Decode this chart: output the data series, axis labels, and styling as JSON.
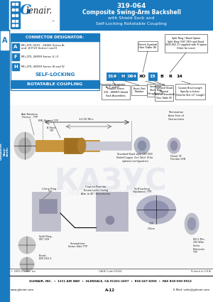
{
  "title_part": "319-064",
  "title_line1": "Composite Swing-Arm Backshell",
  "title_line2": "with Shield Sock and",
  "title_line3": "Self-Locking Rotatable Coupling",
  "header_bg": "#1a7abf",
  "header_text_color": "#ffffff",
  "sidebar_bg": "#1a7abf",
  "connector_designator_title": "CONNECTOR DESIGNATOR:",
  "connector_rows": [
    [
      "A",
      "MIL-DTL-5015, -26482 Series A,\nand -83723 Series I and II"
    ],
    [
      "F",
      "MIL-DTL-38999 Series II, III"
    ],
    [
      "H",
      "MIL-DTL-38999 Series III and IV"
    ]
  ],
  "self_locking": "SELF-LOCKING",
  "rotatable": "ROTATABLE COUPLING",
  "part_number_boxes": [
    "319",
    "H",
    "064",
    "XO",
    "15",
    "B",
    "R",
    "14"
  ],
  "part_number_colors": [
    "#1a7abf",
    "#1a7abf",
    "#1a7abf",
    "#ffffff",
    "#1a7abf",
    "#ffffff",
    "#ffffff",
    "#ffffff"
  ],
  "part_number_text_colors": [
    "#ffffff",
    "#ffffff",
    "#ffffff",
    "#000000",
    "#ffffff",
    "#000000",
    "#000000",
    "#000000"
  ],
  "footer_company": "GLENAIR, INC.  •  1211 AIR WAY  •  GLENDALE, CA 91201-2497  •  818-247-6000  •  FAX 818-500-9912",
  "footer_web": "www.glenair.com",
  "footer_page": "A-12",
  "footer_email": "E-Mail: sales@glenair.com",
  "footer_copyright": "© 2009 Glenair, Inc.",
  "footer_cage": "CAGE Code 06324",
  "footer_printed": "Printed in U.S.A.",
  "bg_color": "#ffffff",
  "box_border": "#1a7abf"
}
